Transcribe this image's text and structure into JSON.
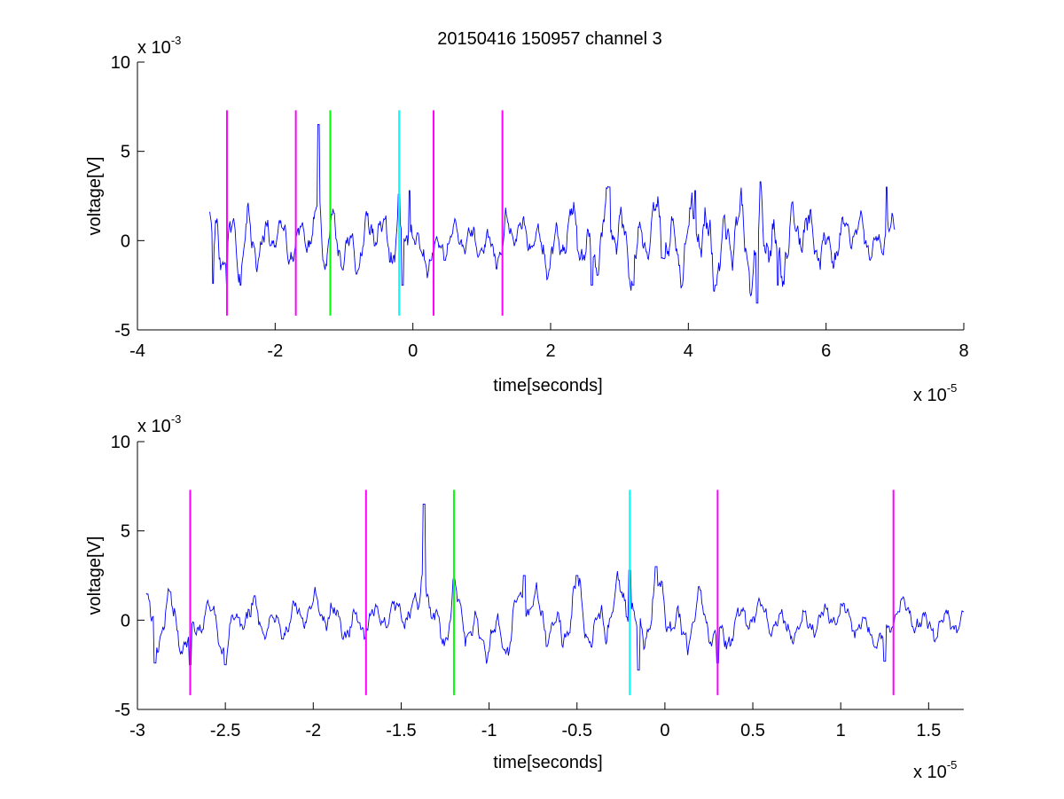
{
  "figure": {
    "title": "20150416 150957 channel 3"
  },
  "colors": {
    "signal": "#0000ff",
    "magenta": "#ff00ff",
    "green": "#00ff00",
    "cyan": "#00ffff",
    "axis": "#000000"
  },
  "chart_data": [
    {
      "type": "line",
      "title": "20150416 150957 channel 3",
      "xlabel": "time[seconds]",
      "ylabel": "voltage[V]",
      "x_exponent_label": "x 10",
      "x_exponent_power": "-5",
      "y_exponent_label": "x 10",
      "y_exponent_power": "-3",
      "x_unit_scale": 1e-05,
      "y_unit_scale": 0.001,
      "xlim": [
        -4,
        8
      ],
      "ylim": [
        -5,
        10
      ],
      "xticks": [
        -4,
        -2,
        0,
        2,
        4,
        6,
        8
      ],
      "xtick_labels": [
        "-4",
        "-2",
        "0",
        "2",
        "4",
        "6",
        "8"
      ],
      "yticks": [
        -5,
        0,
        5,
        10
      ],
      "ytick_labels": [
        "-5",
        "0",
        "5",
        "10"
      ],
      "grid": false,
      "signal": {
        "x_start": -2.95,
        "x_end": 7.0,
        "keypoints": [
          [
            -2.95,
            1.8
          ],
          [
            -2.9,
            -2.4
          ],
          [
            -2.85,
            1.2
          ],
          [
            -2.75,
            -1.5
          ],
          [
            -2.7,
            -2.4
          ],
          [
            -2.6,
            1.5
          ],
          [
            -2.5,
            -2.5
          ],
          [
            -2.4,
            1.0
          ],
          [
            -2.2,
            -1.0
          ],
          [
            -2.0,
            1.4
          ],
          [
            -1.8,
            -0.8
          ],
          [
            -1.55,
            0.5
          ],
          [
            -1.4,
            1.2
          ],
          [
            -1.37,
            6.5
          ],
          [
            -1.33,
            0.3
          ],
          [
            -1.25,
            -1.5
          ],
          [
            -1.2,
            1.8
          ],
          [
            -1.1,
            -0.5
          ],
          [
            -0.8,
            -1.5
          ],
          [
            -0.55,
            2.0
          ],
          [
            -0.3,
            -1.0
          ],
          [
            -0.2,
            2.6
          ],
          [
            -0.15,
            -2.5
          ],
          [
            -0.05,
            2.8
          ],
          [
            0.1,
            -2.0
          ],
          [
            0.3,
            -1.5
          ],
          [
            0.6,
            0.5
          ],
          [
            1.0,
            -0.5
          ],
          [
            1.3,
            -1.3
          ],
          [
            1.35,
            1.5
          ],
          [
            1.7,
            0.5
          ],
          [
            2.0,
            -2.0
          ],
          [
            2.3,
            2.0
          ],
          [
            2.6,
            -2.5
          ],
          [
            2.85,
            3.0
          ],
          [
            3.2,
            -2.5
          ],
          [
            3.5,
            2.0
          ],
          [
            3.9,
            -2.0
          ],
          [
            4.1,
            2.8
          ],
          [
            4.4,
            -2.5
          ],
          [
            4.7,
            2.0
          ],
          [
            5.0,
            -3.5
          ],
          [
            5.05,
            3.3
          ],
          [
            5.3,
            -2.5
          ],
          [
            5.6,
            2.0
          ],
          [
            6.0,
            -1.5
          ],
          [
            6.4,
            1.5
          ],
          [
            6.8,
            -1.5
          ],
          [
            6.88,
            3.0
          ],
          [
            7.0,
            0.0
          ]
        ],
        "amplitude_envelope": [
          [
            -2.95,
            1.6
          ],
          [
            -1.6,
            1.3
          ],
          [
            -0.6,
            1.6
          ],
          [
            0.4,
            1.0
          ],
          [
            1.6,
            1.0
          ],
          [
            2.6,
            1.9
          ],
          [
            4.0,
            2.1
          ],
          [
            5.0,
            2.4
          ],
          [
            6.0,
            1.4
          ],
          [
            7.0,
            1.2
          ]
        ]
      },
      "markers": [
        {
          "x": -2.7,
          "color": "magenta"
        },
        {
          "x": -1.7,
          "color": "magenta"
        },
        {
          "x": -1.2,
          "color": "green"
        },
        {
          "x": -0.2,
          "color": "cyan"
        },
        {
          "x": 0.3,
          "color": "magenta"
        },
        {
          "x": 1.3,
          "color": "magenta"
        }
      ],
      "marker_y_range": [
        -4.2,
        7.3
      ]
    },
    {
      "type": "line",
      "title": "",
      "xlabel": "time[seconds]",
      "ylabel": "voltage[V]",
      "x_exponent_label": "x 10",
      "x_exponent_power": "-5",
      "y_exponent_label": "x 10",
      "y_exponent_power": "-3",
      "x_unit_scale": 1e-05,
      "y_unit_scale": 0.001,
      "xlim": [
        -3.0,
        1.7
      ],
      "ylim": [
        -5,
        10
      ],
      "xticks": [
        -3,
        -2.5,
        -2,
        -1.5,
        -1,
        -0.5,
        0,
        0.5,
        1,
        1.5
      ],
      "xtick_labels": [
        "-3",
        "-2.5",
        "-2",
        "-1.5",
        "-1",
        "-0.5",
        "0",
        "0.5",
        "1",
        "1.5"
      ],
      "yticks": [
        -5,
        0,
        5,
        10
      ],
      "ytick_labels": [
        "-5",
        "0",
        "5",
        "10"
      ],
      "grid": false,
      "signal": {
        "x_start": -2.95,
        "x_end": 1.7,
        "keypoints": [
          [
            -2.95,
            1.8
          ],
          [
            -2.9,
            -2.4
          ],
          [
            -2.83,
            1.7
          ],
          [
            -2.75,
            -1.8
          ],
          [
            -2.7,
            -2.5
          ],
          [
            -2.62,
            1.3
          ],
          [
            -2.5,
            -2.5
          ],
          [
            -2.4,
            1.0
          ],
          [
            -2.2,
            -0.8
          ],
          [
            -2.0,
            1.5
          ],
          [
            -1.8,
            -0.8
          ],
          [
            -1.6,
            0.5
          ],
          [
            -1.4,
            1.0
          ],
          [
            -1.37,
            6.5
          ],
          [
            -1.33,
            0.0
          ],
          [
            -1.25,
            -1.5
          ],
          [
            -1.2,
            2.3
          ],
          [
            -1.1,
            -1.5
          ],
          [
            -0.9,
            -2.0
          ],
          [
            -0.8,
            2.5
          ],
          [
            -0.6,
            -1.8
          ],
          [
            -0.5,
            2.5
          ],
          [
            -0.4,
            -2.0
          ],
          [
            -0.3,
            1.5
          ],
          [
            -0.2,
            2.8
          ],
          [
            -0.15,
            -2.8
          ],
          [
            -0.05,
            3.0
          ],
          [
            0.1,
            -1.8
          ],
          [
            0.2,
            1.5
          ],
          [
            0.3,
            -2.4
          ],
          [
            0.5,
            1.0
          ],
          [
            0.7,
            -1.0
          ],
          [
            1.0,
            0.8
          ],
          [
            1.25,
            -2.3
          ],
          [
            1.32,
            1.6
          ],
          [
            1.5,
            -0.8
          ],
          [
            1.7,
            0.3
          ]
        ],
        "amplitude_envelope": [
          [
            -2.95,
            1.4
          ],
          [
            -2.0,
            1.0
          ],
          [
            -1.5,
            0.9
          ],
          [
            -1.0,
            1.4
          ],
          [
            -0.5,
            1.6
          ],
          [
            0.0,
            1.6
          ],
          [
            0.5,
            1.0
          ],
          [
            1.0,
            0.8
          ],
          [
            1.7,
            0.9
          ]
        ]
      },
      "markers": [
        {
          "x": -2.7,
          "color": "magenta"
        },
        {
          "x": -1.7,
          "color": "magenta"
        },
        {
          "x": -1.2,
          "color": "green"
        },
        {
          "x": -0.2,
          "color": "cyan"
        },
        {
          "x": 0.3,
          "color": "magenta"
        },
        {
          "x": 1.3,
          "color": "magenta"
        }
      ],
      "marker_y_range": [
        -4.2,
        7.3
      ]
    }
  ]
}
